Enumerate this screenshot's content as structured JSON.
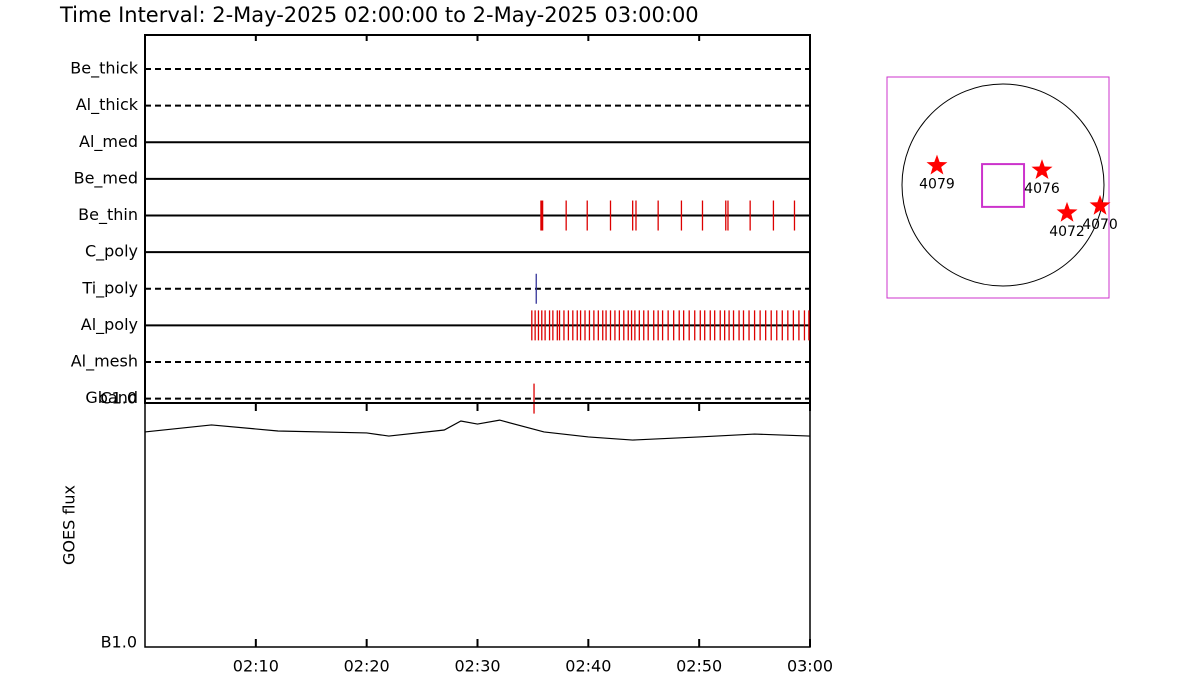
{
  "chart_data": [
    {
      "type": "timeline",
      "title": "Time Interval:  2-May-2025 02:00:00 to  2-May-2025 03:00:00",
      "xlim": [
        0,
        60
      ],
      "xticks": [
        10,
        20,
        30,
        40,
        50,
        60
      ],
      "rows": [
        {
          "name": "Be_thick",
          "style": "dashed",
          "color": "#ff0000",
          "events": []
        },
        {
          "name": "Al_thick",
          "style": "dashed",
          "color": "#ff0000",
          "events": []
        },
        {
          "name": "Al_med",
          "style": "solid",
          "color": "#ff0000",
          "events": []
        },
        {
          "name": "Be_med",
          "style": "solid",
          "color": "#ff0000",
          "events": []
        },
        {
          "name": "Be_thin",
          "style": "solid",
          "color": "#dd0000",
          "events": [
            35.8,
            38.0,
            39.9,
            42.0,
            44.0,
            44.3,
            46.3,
            48.4,
            50.3,
            52.4,
            52.6,
            54.6,
            56.7,
            58.6
          ]
        },
        {
          "name": "C_poly",
          "style": "solid",
          "color": "#ff0000",
          "events": []
        },
        {
          "name": "Ti_poly",
          "style": "dashed",
          "color": "#333399",
          "events": [
            35.3
          ]
        },
        {
          "name": "Al_poly",
          "style": "solid",
          "color": "#dd0000",
          "events": [
            34.9,
            35.2,
            35.5,
            35.8,
            36.1,
            36.5,
            36.8,
            37.2,
            37.4,
            37.8,
            38.2,
            38.6,
            39.0,
            39.3,
            39.7,
            40.1,
            40.5,
            40.9,
            41.3,
            41.6,
            42.0,
            42.4,
            42.8,
            43.2,
            43.6,
            43.9,
            44.2,
            44.6,
            45.0,
            45.4,
            45.9,
            46.3,
            46.7,
            47.2,
            47.7,
            48.2,
            48.6,
            49.1,
            49.6,
            50.1,
            50.5,
            51.0,
            51.4,
            51.9,
            52.3,
            52.7,
            53.1,
            53.6,
            54.0,
            54.5,
            55.0,
            55.5,
            56.0,
            56.5,
            57.0,
            57.5,
            58.0,
            58.5,
            59.0,
            59.5,
            59.9
          ]
        },
        {
          "name": "Al_mesh",
          "style": "dashed",
          "color": "#ff0000",
          "events": []
        },
        {
          "name": "Gband",
          "style": "dashed",
          "color": "#dd0000",
          "events": [
            35.1
          ]
        }
      ]
    },
    {
      "type": "line",
      "ylabel": "GOES flux",
      "color": "#000000",
      "log": true,
      "x": [
        0,
        6,
        12,
        20,
        22,
        27,
        28.5,
        30,
        32,
        36,
        40,
        44,
        50,
        55,
        60
      ],
      "values": [
        7.61e-07,
        8.13e-07,
        7.68e-07,
        7.54e-07,
        7.32e-07,
        7.75e-07,
        8.44e-07,
        8.2e-07,
        8.51e-07,
        7.61e-07,
        7.26e-07,
        7.05e-07,
        7.26e-07,
        7.46e-07,
        7.32e-07
      ],
      "xlim": [
        0,
        60
      ],
      "xticks": [
        {
          "value": 10,
          "label": "02:10"
        },
        {
          "value": 20,
          "label": "02:20"
        },
        {
          "value": 30,
          "label": "02:30"
        },
        {
          "value": 40,
          "label": "02:40"
        },
        {
          "value": 50,
          "label": "02:50"
        },
        {
          "value": 60,
          "label": "03:00"
        }
      ],
      "ylim": [
        1e-07,
        1e-06
      ],
      "yticks": [
        {
          "value": 1e-07,
          "label": "B1.0"
        },
        {
          "value": 1e-06,
          "label": "C1.0"
        }
      ]
    },
    {
      "type": "scatter",
      "color": "#ff0000",
      "frame_color": "#cc33cc",
      "labels": [
        "4079",
        "4076",
        "4072",
        "4070"
      ],
      "x": [
        -605,
        436,
        684,
        1011
      ],
      "y": [
        218,
        173,
        -253,
        -183
      ],
      "xlim": [
        -1100,
        1100
      ],
      "ylim": [
        -1100,
        1100
      ],
      "fov": {
        "x": 50,
        "y": 20,
        "width": 416,
        "height": 426
      }
    }
  ]
}
